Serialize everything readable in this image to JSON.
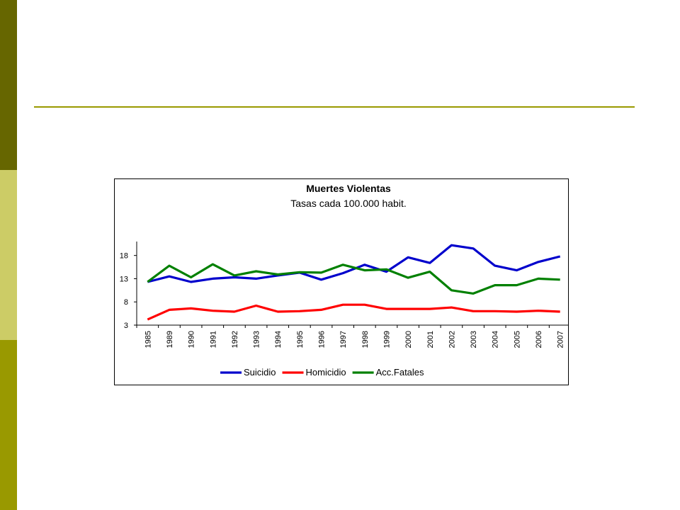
{
  "theme": {
    "band_colors": [
      "#666600",
      "#cccc66",
      "#999900"
    ],
    "rule_color": "#999900"
  },
  "chart_data": {
    "type": "line",
    "title": "Muertes Violentas",
    "subtitle": "Tasas cada 100.000 habit.",
    "categories": [
      "1985",
      "1989",
      "1990",
      "1991",
      "1992",
      "1993",
      "1994",
      "1995",
      "1996",
      "1997",
      "1998",
      "1999",
      "2000",
      "2001",
      "2002",
      "2003",
      "2004",
      "2005",
      "2006",
      "2007"
    ],
    "yticks": [
      3,
      8,
      13,
      18
    ],
    "ylim": [
      3,
      21
    ],
    "grid": false,
    "legend_position": "bottom",
    "series": [
      {
        "name": "Suicidio",
        "color": "#0000cc",
        "values": [
          12.3,
          13.5,
          12.3,
          13.0,
          13.3,
          13.0,
          13.7,
          14.3,
          12.8,
          14.2,
          16.0,
          14.5,
          17.6,
          16.4,
          20.2,
          19.5,
          15.8,
          14.8,
          16.6,
          17.8
        ]
      },
      {
        "name": "Homicidio",
        "color": "#ff0000",
        "values": [
          4.2,
          6.3,
          6.6,
          6.1,
          5.9,
          7.2,
          5.9,
          6.0,
          6.3,
          7.4,
          7.4,
          6.5,
          6.5,
          6.5,
          6.8,
          6.0,
          6.0,
          5.9,
          6.1,
          5.9
        ]
      },
      {
        "name": "Acc.Fatales",
        "color": "#008000",
        "values": [
          12.3,
          15.8,
          13.3,
          16.1,
          13.7,
          14.6,
          13.9,
          14.4,
          14.3,
          16.0,
          14.8,
          15.0,
          13.2,
          14.5,
          10.5,
          9.8,
          11.6,
          11.6,
          13.0,
          12.8
        ]
      }
    ]
  }
}
